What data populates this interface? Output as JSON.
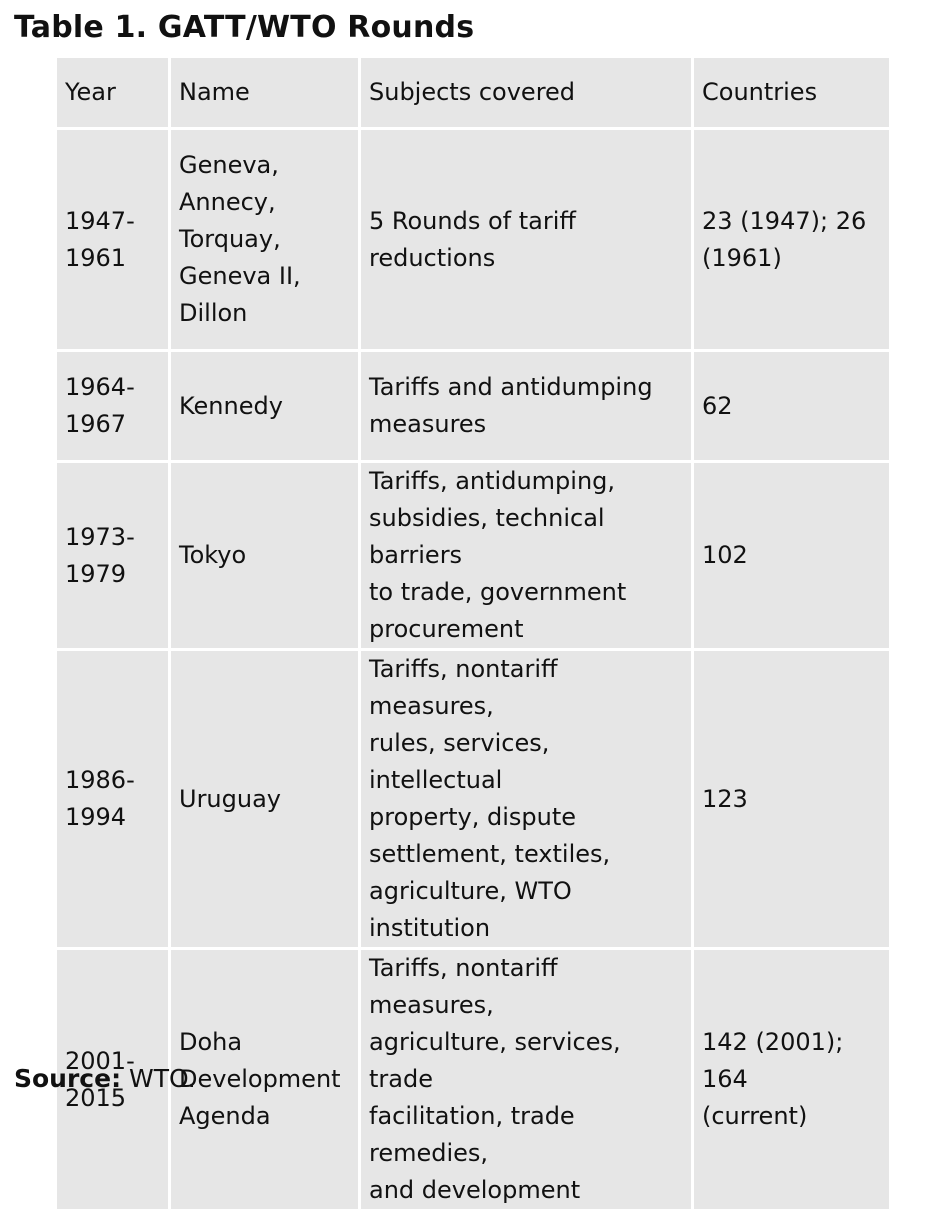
{
  "title": "Table 1. GATT/WTO Rounds",
  "table": {
    "headers": [
      "Year",
      "Name",
      "Subjects covered",
      "Countries"
    ],
    "rows": [
      {
        "year": [
          "1947-",
          "1961"
        ],
        "name": [
          "Geneva,",
          "Annecy,",
          "Torquay,",
          "Geneva II,",
          "Dillon"
        ],
        "subjects": [
          "5 Rounds of tariff reductions"
        ],
        "countries": [
          "23 (1947); 26",
          "(1961)"
        ]
      },
      {
        "year": [
          "1964-",
          "1967"
        ],
        "name": [
          "Kennedy"
        ],
        "subjects": [
          "Tariffs and antidumping",
          "measures"
        ],
        "countries": [
          "62"
        ]
      },
      {
        "year": [
          "1973-",
          "1979"
        ],
        "name": [
          "Tokyo"
        ],
        "subjects": [
          "Tariffs, antidumping,",
          "subsidies, technical barriers",
          "to trade, government",
          "procurement"
        ],
        "countries": [
          "102"
        ]
      },
      {
        "year": [
          "1986-",
          "1994"
        ],
        "name": [
          "Uruguay"
        ],
        "subjects": [
          "Tariffs, nontariff measures,",
          "rules, services, intellectual",
          "property, dispute",
          "settlement, textiles,",
          "agriculture, WTO institution"
        ],
        "countries": [
          "123"
        ]
      },
      {
        "year": [
          "2001-",
          "2015"
        ],
        "name": [
          "Doha",
          "Development",
          "Agenda"
        ],
        "subjects": [
          "Tariffs, nontariff measures,",
          "agriculture, services, trade",
          "facilitation, trade remedies,",
          "and development"
        ],
        "countries": [
          "142 (2001); 164",
          "(current)"
        ]
      }
    ]
  },
  "source": {
    "label": "Source:",
    "value": "WTO."
  }
}
